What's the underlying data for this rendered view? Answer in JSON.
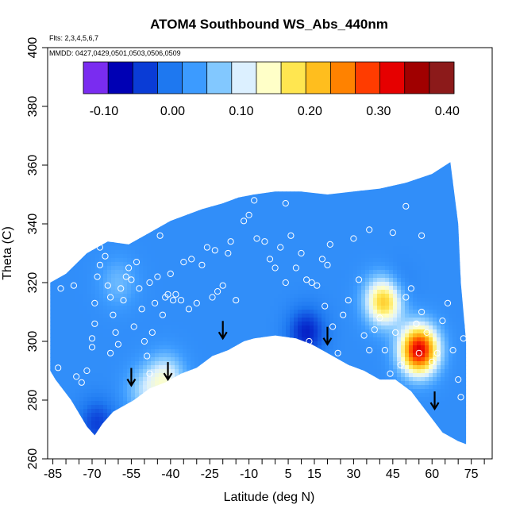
{
  "chart_data": {
    "type": "heatmap",
    "title": "ATOM4 Southbound WS_Abs_440nm",
    "subtitle_flights": "Flts: 2,3,4,5,6,7",
    "subtitle_dates": "MMDD: 0427,0429,0501,0503,0506,0509",
    "xlabel": "Latitude (deg N)",
    "ylabel": "Theta (C)",
    "xlim": [
      -87,
      83
    ],
    "ylim": [
      260,
      400
    ],
    "x_ticks": [
      "-85",
      "-70",
      "-55",
      "-40",
      "-25",
      "-10",
      "5",
      "15",
      "30",
      "45",
      "60",
      "75"
    ],
    "x_tick_values": [
      -85,
      -70,
      -55,
      -40,
      -25,
      -10,
      5,
      15,
      30,
      45,
      60,
      75
    ],
    "x_minor_ticks": [
      -80,
      -75,
      -65,
      -60,
      -50,
      -45,
      -35,
      -30,
      -20,
      -15,
      -5,
      0,
      10,
      20,
      25,
      35,
      40,
      50,
      55,
      65,
      70,
      80
    ],
    "y_ticks": [
      "260",
      "280",
      "300",
      "320",
      "340",
      "360",
      "380",
      "400"
    ],
    "y_tick_values": [
      260,
      280,
      300,
      320,
      340,
      360,
      380,
      400
    ],
    "colorbar": {
      "range": [
        -0.13,
        0.41
      ],
      "ticks": [
        "-0.10",
        "0.00",
        "0.10",
        "0.20",
        "0.30",
        "0.40"
      ],
      "tick_values": [
        -0.1,
        0.0,
        0.1,
        0.2,
        0.3,
        0.4
      ],
      "colors": [
        "#7a2cf0",
        "#0000b4",
        "#0a3cd6",
        "#1e78f0",
        "#3c9bff",
        "#82c8ff",
        "#dcf0ff",
        "#ffffc8",
        "#ffe650",
        "#ffbe1e",
        "#ff8200",
        "#ff3c00",
        "#e60000",
        "#a00000",
        "#8c1a1a"
      ]
    },
    "background_value": 0.01,
    "hotspots": [
      {
        "lat": 55,
        "theta": 297,
        "value": 0.34
      },
      {
        "lat": 42,
        "theta": 314,
        "value": 0.24
      },
      {
        "lat": 12,
        "theta": 303,
        "value": -0.07
      },
      {
        "lat": 45,
        "theta": 317,
        "value": -0.05
      },
      {
        "lat": -42,
        "theta": 287,
        "value": 0.12
      },
      {
        "lat": -50,
        "theta": 283,
        "value": 0.07
      },
      {
        "lat": -68,
        "theta": 272,
        "value": -0.05
      },
      {
        "lat": -60,
        "theta": 320,
        "value": 0.05
      }
    ],
    "coverage_upper": [
      [
        -86,
        320
      ],
      [
        -80,
        323
      ],
      [
        -72,
        330
      ],
      [
        -64,
        334
      ],
      [
        -56,
        333
      ],
      [
        -48,
        337
      ],
      [
        -40,
        341
      ],
      [
        -34,
        343
      ],
      [
        -28,
        345
      ],
      [
        -20,
        347
      ],
      [
        -14,
        349
      ],
      [
        -8,
        350
      ],
      [
        0,
        351
      ],
      [
        10,
        351
      ],
      [
        20,
        350
      ],
      [
        30,
        351
      ],
      [
        40,
        352
      ],
      [
        50,
        354
      ],
      [
        60,
        357
      ],
      [
        67,
        361
      ]
    ],
    "coverage_right": [
      [
        67,
        361
      ],
      [
        70,
        340
      ],
      [
        71,
        320
      ],
      [
        73,
        300
      ],
      [
        73,
        285
      ],
      [
        73,
        265
      ]
    ],
    "coverage_lower": [
      [
        73,
        265
      ],
      [
        70,
        266
      ],
      [
        64,
        269
      ],
      [
        58,
        276
      ],
      [
        52,
        283
      ],
      [
        46,
        287
      ],
      [
        40,
        287
      ],
      [
        34,
        290
      ],
      [
        28,
        292
      ],
      [
        20,
        296
      ],
      [
        14,
        299
      ],
      [
        8,
        301
      ],
      [
        0,
        302
      ],
      [
        -8,
        301
      ],
      [
        -12,
        300
      ],
      [
        -18,
        297
      ],
      [
        -24,
        295
      ],
      [
        -30,
        291
      ],
      [
        -36,
        289
      ],
      [
        -42,
        286
      ],
      [
        -48,
        284
      ],
      [
        -54,
        280
      ],
      [
        -58,
        278
      ],
      [
        -62,
        276
      ],
      [
        -66,
        272
      ],
      [
        -69,
        268
      ],
      [
        -72,
        271
      ],
      [
        -78,
        280
      ],
      [
        -84,
        287
      ],
      [
        -86,
        290
      ]
    ],
    "arrows": [
      [
        -55,
        285
      ],
      [
        -41,
        287
      ],
      [
        -20,
        301
      ],
      [
        20,
        299
      ],
      [
        61,
        277
      ]
    ],
    "points": [
      [
        -83,
        291
      ],
      [
        -82,
        318
      ],
      [
        -77,
        319
      ],
      [
        -76,
        288
      ],
      [
        -74,
        286
      ],
      [
        -72,
        290
      ],
      [
        -70,
        298
      ],
      [
        -70,
        301
      ],
      [
        -69,
        306
      ],
      [
        -69,
        313
      ],
      [
        -68,
        322
      ],
      [
        -67,
        326
      ],
      [
        -67,
        332
      ],
      [
        -65,
        329
      ],
      [
        -64,
        319
      ],
      [
        -63,
        315
      ],
      [
        -63,
        296
      ],
      [
        -62,
        309
      ],
      [
        -61,
        303
      ],
      [
        -60,
        299
      ],
      [
        -59,
        318
      ],
      [
        -58,
        314
      ],
      [
        -57,
        322
      ],
      [
        -56,
        325
      ],
      [
        -55,
        321
      ],
      [
        -54,
        305
      ],
      [
        -53,
        327
      ],
      [
        -52,
        318
      ],
      [
        -51,
        311
      ],
      [
        -50,
        300
      ],
      [
        -49,
        295
      ],
      [
        -48,
        289
      ],
      [
        -48,
        320
      ],
      [
        -47,
        303
      ],
      [
        -46,
        313
      ],
      [
        -45,
        322
      ],
      [
        -44,
        336
      ],
      [
        -43,
        309
      ],
      [
        -42,
        315
      ],
      [
        -41,
        316
      ],
      [
        -40,
        323
      ],
      [
        -39,
        314
      ],
      [
        -38,
        316
      ],
      [
        -36,
        314
      ],
      [
        -35,
        327
      ],
      [
        -33,
        311
      ],
      [
        -32,
        328
      ],
      [
        -30,
        313
      ],
      [
        -28,
        326
      ],
      [
        -26,
        332
      ],
      [
        -24,
        315
      ],
      [
        -22,
        317
      ],
      [
        -20,
        319
      ],
      [
        -18,
        330
      ],
      [
        -15,
        314
      ],
      [
        -12,
        341
      ],
      [
        -10,
        343
      ],
      [
        -7,
        335
      ],
      [
        -4,
        334
      ],
      [
        -2,
        328
      ],
      [
        0,
        325
      ],
      [
        2,
        332
      ],
      [
        4,
        320
      ],
      [
        6,
        336
      ],
      [
        8,
        325
      ],
      [
        10,
        330
      ],
      [
        12,
        321
      ],
      [
        13,
        300
      ],
      [
        14,
        320
      ],
      [
        16,
        319
      ],
      [
        18,
        328
      ],
      [
        19,
        312
      ],
      [
        20,
        326
      ],
      [
        21,
        333
      ],
      [
        22,
        305
      ],
      [
        24,
        296
      ],
      [
        26,
        309
      ],
      [
        28,
        314
      ],
      [
        30,
        335
      ],
      [
        32,
        321
      ],
      [
        34,
        302
      ],
      [
        36,
        297
      ],
      [
        38,
        304
      ],
      [
        40,
        308
      ],
      [
        42,
        297
      ],
      [
        44,
        289
      ],
      [
        46,
        303
      ],
      [
        48,
        292
      ],
      [
        50,
        315
      ],
      [
        52,
        318
      ],
      [
        54,
        306
      ],
      [
        55,
        296
      ],
      [
        56,
        310
      ],
      [
        58,
        303
      ],
      [
        60,
        293
      ],
      [
        62,
        296
      ],
      [
        64,
        307
      ],
      [
        66,
        313
      ],
      [
        68,
        297
      ],
      [
        70,
        287
      ],
      [
        71,
        281
      ],
      [
        72,
        301
      ],
      [
        -8,
        348
      ],
      [
        4,
        347
      ],
      [
        -17,
        334
      ],
      [
        -23,
        331
      ],
      [
        36,
        338
      ],
      [
        50,
        346
      ],
      [
        56,
        336
      ],
      [
        45,
        337
      ]
    ]
  }
}
